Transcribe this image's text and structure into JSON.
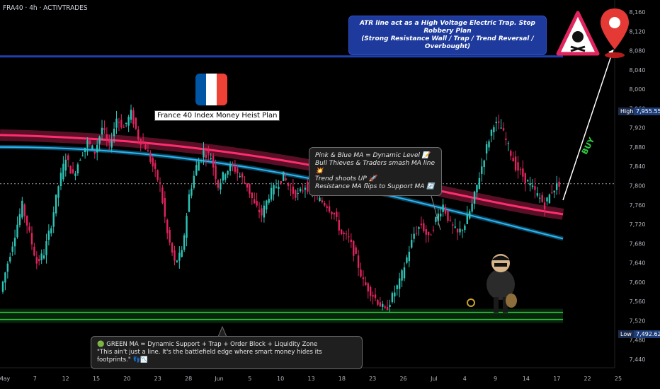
{
  "header": {
    "symbol_line": "FRA40 · 4h · ACTIVTRADES"
  },
  "labels": {
    "flag_caption": "France 40 Index Money Heist Plan",
    "buy": "BUY",
    "high_label": "High",
    "high_value": "7,955.55",
    "low_label": "Low",
    "low_value": "7,492.62"
  },
  "callouts": {
    "atr": {
      "line1": "ATR line act as a High Voltage Electric Trap. Stop Robbery Plan",
      "line2": "(Strong Resistance Wall / Trap / Trend Reversal / Overbought)"
    },
    "ma_notes": [
      "Pink & Blue MA = Dynamic Level 📝",
      "Bull Thieves & Traders smash MA line 💥",
      "Trend shoots UP 🚀",
      "Resistance MA flips to Support MA 🔄"
    ],
    "green": {
      "line1": "🟢 GREEN MA = Dynamic Support + Trap + Order Block + Liquidity Zone",
      "line2": "\"This ain't just a line. It's the battlefield edge where smart money hides its footprints.\" 👣📉"
    }
  },
  "colors": {
    "bull": "#2ec4b6",
    "bear": "#e0245e",
    "pink_ma": "#ff2d6f",
    "blue_ma": "#29b6f6",
    "green_ma": "#2ecc40",
    "atr_line": "#1e40af"
  },
  "chart_data": {
    "type": "candlestick",
    "timeframe": "4h",
    "y_axis": {
      "ticks": [
        8160,
        8120,
        8080,
        8040,
        8000,
        7960,
        7920,
        7880,
        7840,
        7800,
        7760,
        7720,
        7680,
        7640,
        7600,
        7560,
        7520,
        7480,
        7440
      ],
      "range": [
        7420,
        8170
      ]
    },
    "x_axis": {
      "ticks": [
        "May",
        "7",
        "12",
        "15",
        "20",
        "23",
        "28",
        "Jun",
        "5",
        "10",
        "13",
        "18",
        "23",
        "26",
        "Jul",
        "4",
        "9",
        "14",
        "17",
        "22",
        "25"
      ]
    },
    "levels": {
      "atr_resistance": 8068,
      "green_support": 7530,
      "current_price": 7804,
      "high": 7955.55,
      "low": 7492.62
    },
    "close_path": [
      7580,
      7640,
      7700,
      7760,
      7700,
      7640,
      7660,
      7720,
      7800,
      7860,
      7820,
      7860,
      7890,
      7870,
      7920,
      7880,
      7940,
      7920,
      7950,
      7900,
      7880,
      7840,
      7800,
      7700,
      7640,
      7660,
      7780,
      7840,
      7870,
      7860,
      7800,
      7830,
      7840,
      7820,
      7800,
      7760,
      7740,
      7780,
      7800,
      7820,
      7790,
      7780,
      7800,
      7790,
      7770,
      7760,
      7740,
      7700,
      7690,
      7650,
      7600,
      7580,
      7560,
      7540,
      7570,
      7600,
      7650,
      7700,
      7720,
      7690,
      7730,
      7760,
      7720,
      7700,
      7720,
      7760,
      7820,
      7880,
      7930,
      7920,
      7880,
      7840,
      7820,
      7800,
      7780,
      7760,
      7790,
      7805
    ]
  }
}
